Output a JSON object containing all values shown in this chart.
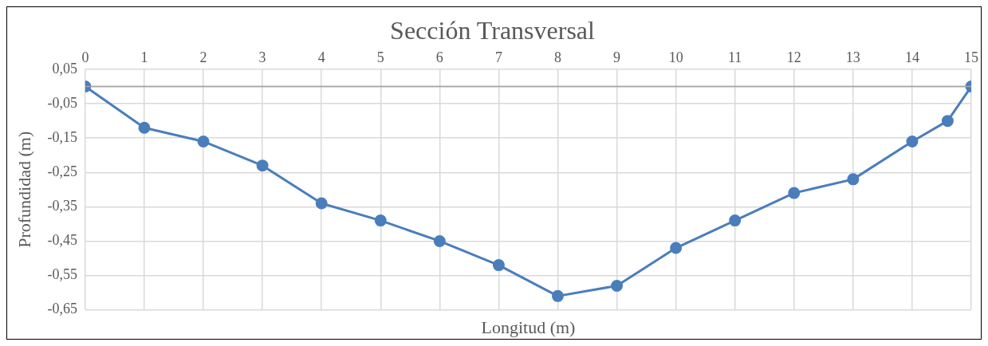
{
  "chart_data": {
    "type": "line",
    "title": "Sección Transversal",
    "xlabel": "Longitud (m)",
    "ylabel": "Profundidad (m)",
    "x": [
      0,
      1,
      2,
      3,
      4,
      5,
      6,
      7,
      8,
      9,
      10,
      11,
      12,
      13,
      14,
      14.6,
      15
    ],
    "series": [
      {
        "color": "#4a7ebb",
        "values": [
          0,
          -0.12,
          -0.16,
          -0.23,
          -0.34,
          -0.39,
          -0.45,
          -0.52,
          -0.61,
          -0.58,
          -0.47,
          -0.39,
          -0.31,
          -0.27,
          -0.16,
          -0.1,
          0
        ]
      }
    ],
    "xlim": [
      0,
      15
    ],
    "xticks": [
      0,
      1,
      2,
      3,
      4,
      5,
      6,
      7,
      8,
      9,
      10,
      11,
      12,
      13,
      14,
      15
    ],
    "ylim": [
      -0.65,
      0.05
    ],
    "yticks": [
      {
        "value": 0.05,
        "label": "0,05"
      },
      {
        "value": -0.05,
        "label": "-0,05"
      },
      {
        "value": -0.15,
        "label": "-0,15"
      },
      {
        "value": -0.25,
        "label": "-0,25"
      },
      {
        "value": -0.35,
        "label": "-0,35"
      },
      {
        "value": -0.45,
        "label": "-0,45"
      },
      {
        "value": -0.55,
        "label": "-0,55"
      },
      {
        "value": -0.65,
        "label": "-0,65"
      }
    ],
    "grid": true,
    "legend": false,
    "marker": "circle",
    "line_style": "solid"
  }
}
